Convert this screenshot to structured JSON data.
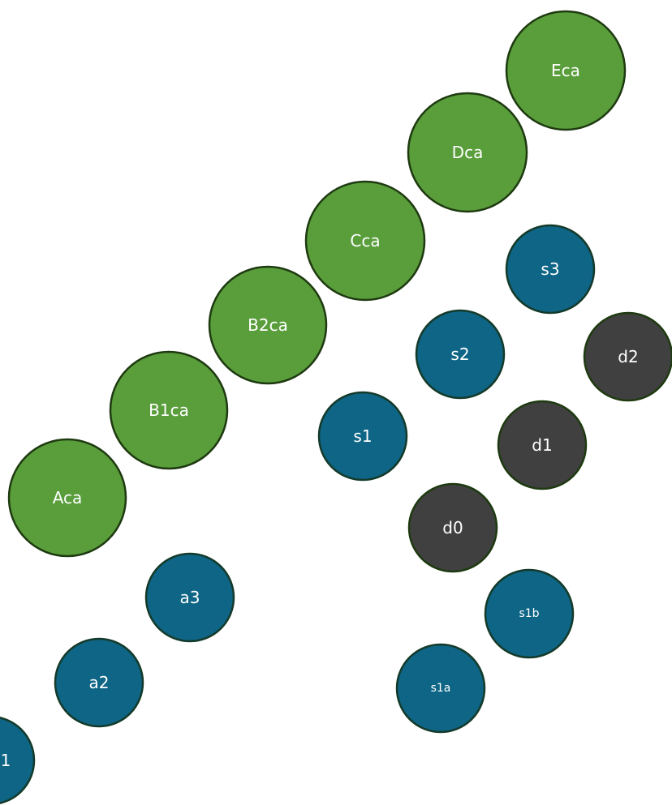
{
  "nodes": [
    {
      "label": "Eca"
    },
    {
      "label": "Dca"
    },
    {
      "label": "Cca"
    },
    {
      "label": "B2ca"
    },
    {
      "label": "B1ca"
    },
    {
      "label": "Aca"
    },
    {
      "label": "s3"
    },
    {
      "label": "s2"
    },
    {
      "label": "s1"
    },
    {
      "label": "d2"
    },
    {
      "label": "d1"
    },
    {
      "label": "d0"
    },
    {
      "label": "s1b"
    },
    {
      "label": "s1a"
    },
    {
      "label": "a3"
    },
    {
      "label": "a2"
    },
    {
      "label": "1"
    }
  ]
}
